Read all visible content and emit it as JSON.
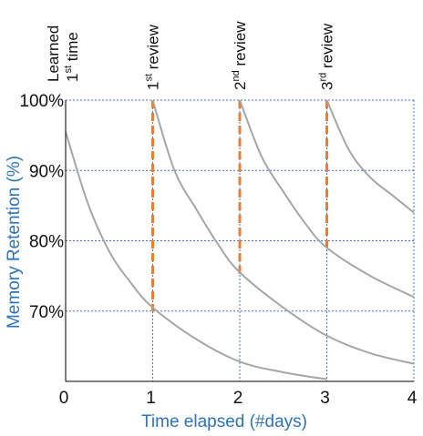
{
  "chart_data": {
    "type": "line",
    "xlabel": "Time elapsed (#days)",
    "ylabel": "Memory Retention (%)",
    "xlim": [
      0,
      4
    ],
    "ylim": [
      60,
      100
    ],
    "x_ticks": [
      "0",
      "1",
      "2",
      "3",
      "4"
    ],
    "y_ticks": [
      {
        "value": 100,
        "label": "100%"
      },
      {
        "value": 90,
        "label": "90%"
      },
      {
        "value": 80,
        "label": "80%"
      },
      {
        "value": 70,
        "label": "70%"
      }
    ],
    "grid": true,
    "colors": {
      "curve": "#a6a6a6",
      "review_line": "#ed7d31",
      "grid": "#4472c4",
      "axis_title": "#2e74b5"
    },
    "events": [
      {
        "x": 0,
        "lines": [
          "Learned",
          "1",
          "time"
        ],
        "sup": "st"
      },
      {
        "x": 1,
        "label": "1",
        "sup": "st",
        "suffix": " review"
      },
      {
        "x": 2,
        "label": "2",
        "sup": "nd",
        "suffix": " review"
      },
      {
        "x": 3,
        "label": "3",
        "sup": "rd",
        "suffix": " review"
      }
    ],
    "review_drops": [
      {
        "x": 1,
        "from": 70,
        "to": 100
      },
      {
        "x": 2,
        "from": 75,
        "to": 100
      },
      {
        "x": 3,
        "from": 79,
        "to": 100
      }
    ],
    "series": [
      {
        "x": [
          0,
          0.25,
          0.5,
          0.75,
          1,
          1.5,
          2,
          2.5,
          3
        ],
        "y": [
          95.5,
          85.5,
          78.5,
          74,
          70.5,
          66,
          62.8,
          61.3,
          60.3
        ]
      },
      {
        "x": [
          1,
          1.25,
          1.5,
          1.75,
          2,
          2.5,
          3,
          3.5,
          4
        ],
        "y": [
          100,
          90,
          84.5,
          79.5,
          75.5,
          70.5,
          66.5,
          64,
          62.5
        ]
      },
      {
        "x": [
          2,
          2.25,
          2.5,
          2.75,
          3,
          3.5,
          4
        ],
        "y": [
          100,
          92,
          87,
          82.5,
          79,
          75,
          72
        ]
      },
      {
        "x": [
          3,
          3.25,
          3.5,
          3.75,
          4
        ],
        "y": [
          100,
          93,
          89,
          86.5,
          84
        ]
      }
    ]
  }
}
